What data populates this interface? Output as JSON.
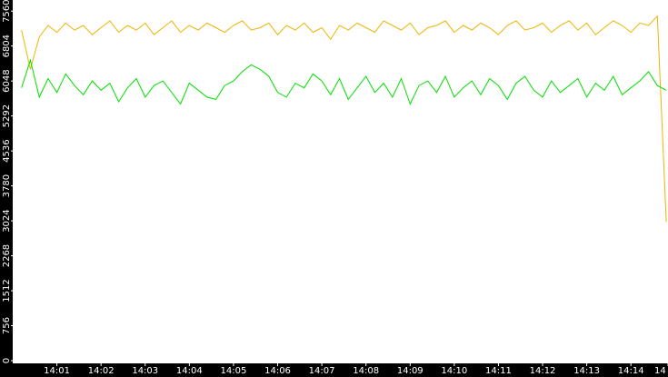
{
  "chart_data": {
    "type": "line",
    "x": [
      840.2,
      840.4,
      840.6,
      840.8,
      841,
      841.2,
      841.4,
      841.6,
      841.8,
      842,
      842.2,
      842.4,
      842.6,
      842.8,
      843,
      843.2,
      843.4,
      843.6,
      843.8,
      844,
      844.2,
      844.4,
      844.6,
      844.8,
      845,
      845.2,
      845.4,
      845.6,
      845.8,
      846,
      846.2,
      846.4,
      846.6,
      846.8,
      847,
      847.2,
      847.4,
      847.6,
      847.8,
      848,
      848.2,
      848.4,
      848.6,
      848.8,
      849,
      849.2,
      849.4,
      849.6,
      849.8,
      850,
      850.2,
      850.4,
      850.6,
      850.8,
      851,
      851.2,
      851.4,
      851.6,
      851.8,
      852,
      852.2,
      852.4,
      852.6,
      852.8,
      853,
      853.2,
      853.4,
      853.6,
      853.8,
      854,
      854.2,
      854.4,
      854.6,
      854.8
    ],
    "series": [
      {
        "color": "#f0b400",
        "values": [
          7150,
          6300,
          7000,
          7250,
          7100,
          7300,
          7150,
          7250,
          7050,
          7200,
          7350,
          7100,
          7250,
          7150,
          7300,
          7050,
          7200,
          7350,
          7100,
          7250,
          7150,
          7300,
          7200,
          7100,
          7250,
          7350,
          7150,
          7200,
          7300,
          7050,
          7250,
          7150,
          7300,
          7100,
          7200,
          6950,
          7250,
          7150,
          7300,
          7200,
          7100,
          7350,
          7250,
          7150,
          7300,
          7050,
          7200,
          7250,
          7350,
          7100,
          7250,
          7150,
          7300,
          7200,
          7050,
          7250,
          7350,
          7150,
          7200,
          7300,
          7100,
          7250,
          7350,
          7150,
          7300,
          7050,
          7200,
          7350,
          7250,
          7100,
          7300,
          7250,
          7450,
          3000
        ]
      },
      {
        "color": "#00e000",
        "values": [
          5900,
          6500,
          5700,
          6100,
          5800,
          6200,
          5950,
          5750,
          6050,
          5850,
          6000,
          5600,
          5900,
          6100,
          5700,
          5950,
          6050,
          5800,
          5550,
          6000,
          5850,
          5700,
          5650,
          5950,
          6050,
          6250,
          6400,
          6300,
          6150,
          5800,
          5700,
          6000,
          5900,
          6200,
          6050,
          5750,
          6100,
          5650,
          5900,
          6150,
          5800,
          6000,
          5700,
          6100,
          5550,
          5950,
          6050,
          5800,
          6150,
          5700,
          5900,
          6050,
          5750,
          6100,
          5950,
          5650,
          6000,
          6150,
          5850,
          5700,
          6050,
          5800,
          5950,
          6100,
          5700,
          6000,
          5850,
          6150,
          5750,
          5900,
          6050,
          6250,
          5950,
          5850
        ]
      }
    ],
    "xlim": [
      840,
      854.84
    ],
    "xticks": [
      {
        "value": 841,
        "label": "14:01"
      },
      {
        "value": 842,
        "label": "14:02"
      },
      {
        "value": 843,
        "label": "14:03"
      },
      {
        "value": 844,
        "label": "14:04"
      },
      {
        "value": 845,
        "label": "14:05"
      },
      {
        "value": 846,
        "label": "14:06"
      },
      {
        "value": 847,
        "label": "14:07"
      },
      {
        "value": 848,
        "label": "14:08"
      },
      {
        "value": 849,
        "label": "14:09"
      },
      {
        "value": 850,
        "label": "14:10"
      },
      {
        "value": 851,
        "label": "14:11"
      },
      {
        "value": 852,
        "label": "14:12"
      },
      {
        "value": 853,
        "label": "14:13"
      },
      {
        "value": 854,
        "label": "14:14"
      },
      {
        "value": 854.84,
        "label": "14"
      }
    ],
    "ylim": [
      0,
      7800
    ],
    "yticks": [
      0,
      756,
      1512,
      2268,
      3024,
      3780,
      4536,
      5292,
      6048,
      6804,
      7560
    ]
  }
}
